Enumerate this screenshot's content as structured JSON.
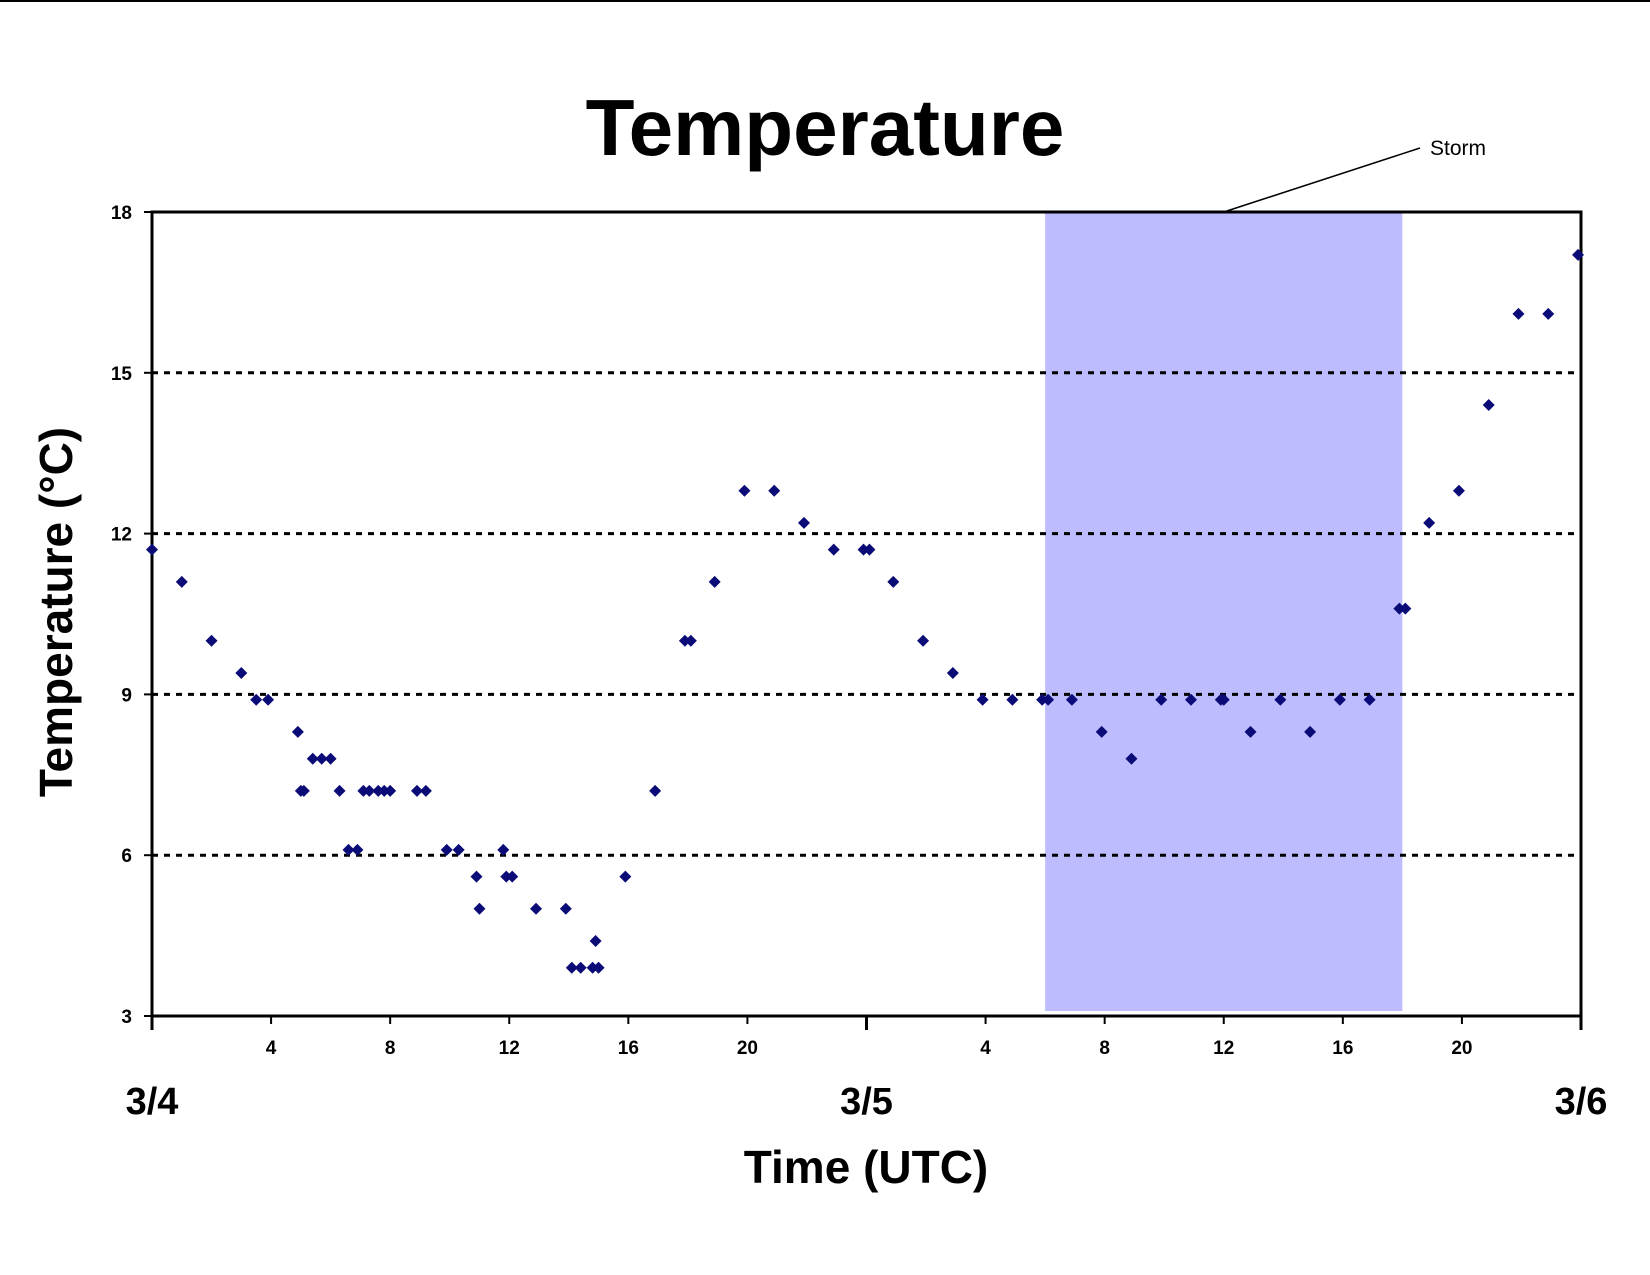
{
  "chart_data": {
    "type": "scatter",
    "title": "Temperature",
    "xlabel": "Time (UTC)",
    "ylabel": "Temperature (°C)",
    "ylim": [
      3,
      18
    ],
    "yticks": [
      "3",
      "6",
      "9",
      "12",
      "15",
      "18"
    ],
    "xlim_hours": [
      0,
      48
    ],
    "xtick_hours": [
      4,
      8,
      12,
      16,
      20,
      28,
      32,
      36,
      40,
      44
    ],
    "xtick_labels": [
      "4",
      "8",
      "12",
      "16",
      "20",
      "4",
      "8",
      "12",
      "16",
      "20"
    ],
    "day_tick_hours": [
      0,
      24,
      48
    ],
    "day_labels": [
      "3/4",
      "3/5",
      "3/6"
    ],
    "grid": {
      "horizontal": true,
      "style": "dotted",
      "values": [
        6,
        9,
        12,
        15
      ]
    },
    "legend": "none",
    "colors": {
      "marker": "#0b0b78",
      "storm_band": "#bcbcff",
      "grid": "#000000"
    },
    "annotations": [
      {
        "label": "Storm",
        "x_start": 30,
        "x_end": 42,
        "type": "shaded-band"
      }
    ],
    "series": [
      {
        "marker": "diamond",
        "points": [
          [
            0,
            11.7
          ],
          [
            1,
            11.1
          ],
          [
            2,
            10.0
          ],
          [
            3,
            9.4
          ],
          [
            3.5,
            8.9
          ],
          [
            3.9,
            8.9
          ],
          [
            4.9,
            8.3
          ],
          [
            5.0,
            7.2
          ],
          [
            5.1,
            7.2
          ],
          [
            5.4,
            7.8
          ],
          [
            5.7,
            7.8
          ],
          [
            6.0,
            7.8
          ],
          [
            6.3,
            7.2
          ],
          [
            6.6,
            6.1
          ],
          [
            6.9,
            6.1
          ],
          [
            7.1,
            7.2
          ],
          [
            7.3,
            7.2
          ],
          [
            7.6,
            7.2
          ],
          [
            7.8,
            7.2
          ],
          [
            8.0,
            7.2
          ],
          [
            8.9,
            7.2
          ],
          [
            9.2,
            7.2
          ],
          [
            9.9,
            6.1
          ],
          [
            10.3,
            6.1
          ],
          [
            10.9,
            5.6
          ],
          [
            11.0,
            5.0
          ],
          [
            11.8,
            6.1
          ],
          [
            11.9,
            5.6
          ],
          [
            12.1,
            5.6
          ],
          [
            12.9,
            5.0
          ],
          [
            13.9,
            5.0
          ],
          [
            14.1,
            3.9
          ],
          [
            14.4,
            3.9
          ],
          [
            14.8,
            3.9
          ],
          [
            14.9,
            4.4
          ],
          [
            15.0,
            3.9
          ],
          [
            15.9,
            5.6
          ],
          [
            16.9,
            7.2
          ],
          [
            17.9,
            10.0
          ],
          [
            18.1,
            10.0
          ],
          [
            18.9,
            11.1
          ],
          [
            19.9,
            12.8
          ],
          [
            20.9,
            12.8
          ],
          [
            21.9,
            12.2
          ],
          [
            22.9,
            11.7
          ],
          [
            23.9,
            11.7
          ],
          [
            24.1,
            11.7
          ],
          [
            24.9,
            11.1
          ],
          [
            25.9,
            10.0
          ],
          [
            26.9,
            9.4
          ],
          [
            27.9,
            8.9
          ],
          [
            28.9,
            8.9
          ],
          [
            29.9,
            8.9
          ],
          [
            30.1,
            8.9
          ],
          [
            30.9,
            8.9
          ],
          [
            31.9,
            8.3
          ],
          [
            32.9,
            7.8
          ],
          [
            33.9,
            8.9
          ],
          [
            34.9,
            8.9
          ],
          [
            35.9,
            8.9
          ],
          [
            36.0,
            8.9
          ],
          [
            36.9,
            8.3
          ],
          [
            37.9,
            8.9
          ],
          [
            38.9,
            8.3
          ],
          [
            39.9,
            8.9
          ],
          [
            40.9,
            8.9
          ],
          [
            41.9,
            10.6
          ],
          [
            42.1,
            10.6
          ],
          [
            42.9,
            12.2
          ],
          [
            43.9,
            12.8
          ],
          [
            44.9,
            14.4
          ],
          [
            45.9,
            16.1
          ],
          [
            46.9,
            16.1
          ],
          [
            47.9,
            17.2
          ]
        ]
      }
    ]
  }
}
